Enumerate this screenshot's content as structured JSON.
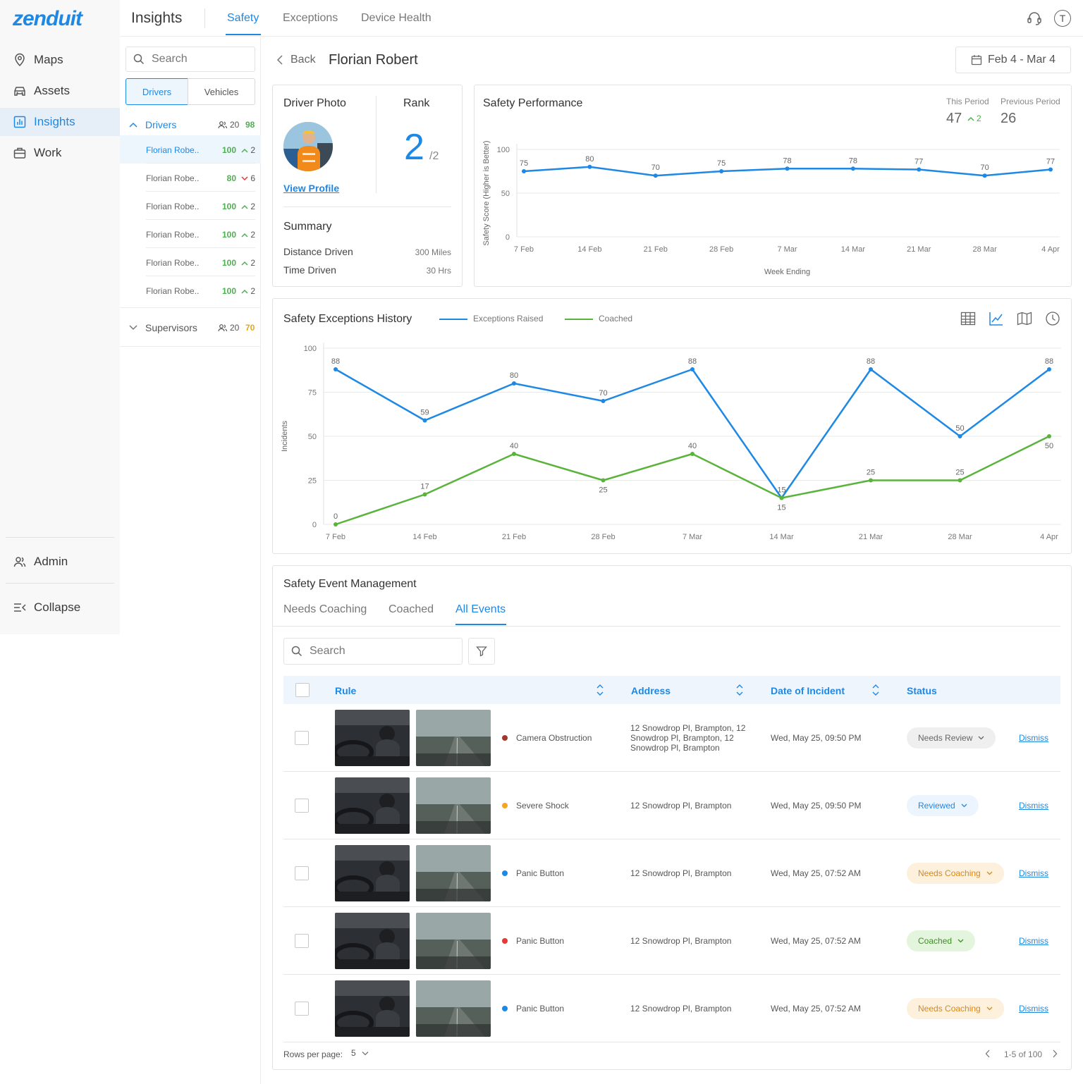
{
  "app": {
    "logo": "zenduit",
    "title": "Insights"
  },
  "nav": {
    "items": [
      {
        "label": "Maps",
        "icon": "map-pin-icon"
      },
      {
        "label": "Assets",
        "icon": "car-icon"
      },
      {
        "label": "Insights",
        "icon": "chart-icon",
        "active": true
      },
      {
        "label": "Work",
        "icon": "briefcase-icon"
      }
    ],
    "admin": "Admin",
    "collapse": "Collapse"
  },
  "tabs": [
    {
      "label": "Safety",
      "active": true
    },
    {
      "label": "Exceptions"
    },
    {
      "label": "Device Health"
    }
  ],
  "header_icons": {
    "support": "headset-icon",
    "user_initial": "T"
  },
  "list": {
    "search_placeholder": "Search",
    "segments": [
      "Drivers",
      "Vehicles"
    ],
    "drivers_group": {
      "label": "Drivers",
      "count": "20",
      "score": "98"
    },
    "drivers": [
      {
        "name": "Florian Robe..",
        "score": "100",
        "dir": "up",
        "change": "2",
        "selected": true
      },
      {
        "name": "Florian Robe..",
        "score": "80",
        "dir": "down",
        "change": "6"
      },
      {
        "name": "Florian Robe..",
        "score": "100",
        "dir": "up",
        "change": "2"
      },
      {
        "name": "Florian Robe..",
        "score": "100",
        "dir": "up",
        "change": "2"
      },
      {
        "name": "Florian Robe..",
        "score": "100",
        "dir": "up",
        "change": "2"
      },
      {
        "name": "Florian Robe..",
        "score": "100",
        "dir": "up",
        "change": "2"
      }
    ],
    "supervisors_group": {
      "label": "Supervisors",
      "count": "20",
      "score": "70"
    }
  },
  "page": {
    "back": "Back",
    "driver_name": "Florian Robert",
    "date_range": "Feb 4 - Mar 4"
  },
  "profile": {
    "photo_title": "Driver Photo",
    "view_profile": "View Profile",
    "rank_title": "Rank",
    "rank": "2",
    "rank_total": "/2",
    "summary_title": "Summary",
    "distance_label": "Distance Driven",
    "distance_value": "300 Miles",
    "time_label": "Time Driven",
    "time_value": "30 Hrs"
  },
  "performance": {
    "title": "Safety Performance",
    "this_period_label": "This Period",
    "this_period_value": "47",
    "this_period_change": "2",
    "previous_period_label": "Previous Period",
    "previous_period_value": "26"
  },
  "exceptions": {
    "title": "Safety Exceptions History",
    "view_icons": [
      "table-icon",
      "line-chart-icon",
      "map-icon",
      "clock-icon"
    ]
  },
  "chart_data": [
    {
      "type": "line",
      "ylabel": "Safety Score (Higher is Better)",
      "xlabel": "Week Ending",
      "ylim": [
        0,
        100
      ],
      "yticks": [
        "0",
        "50",
        "100"
      ],
      "categories": [
        "7 Feb",
        "14 Feb",
        "21 Feb",
        "28 Feb",
        "7 Mar",
        "14 Mar",
        "21 Mar",
        "28 Mar",
        "4 Apr"
      ],
      "series": [
        {
          "values": [
            75,
            80,
            70,
            75,
            78,
            78,
            77,
            70,
            77
          ],
          "color": "#1e88e5"
        }
      ],
      "grid": true
    },
    {
      "type": "line",
      "ylabel": "Incidents",
      "ylim": [
        0,
        100
      ],
      "yticks": [
        "0",
        "25",
        "50",
        "75",
        "100"
      ],
      "categories": [
        "7 Feb",
        "14 Feb",
        "21 Feb",
        "28 Feb",
        "7 Mar",
        "14 Mar",
        "21 Mar",
        "28 Mar",
        "4 Apr"
      ],
      "series": [
        {
          "name": "Exceptions Raised",
          "values": [
            88,
            59,
            80,
            70,
            88,
            15,
            88,
            50,
            88
          ],
          "color": "#1e88e5"
        },
        {
          "name": "Coached",
          "values": [
            0,
            17,
            40,
            25,
            40,
            15,
            25,
            25,
            50
          ],
          "color": "#5ab43c"
        }
      ],
      "legend": "top",
      "grid": true
    }
  ],
  "events": {
    "title": "Safety Event Management",
    "tabs": [
      {
        "label": "Needs Coaching"
      },
      {
        "label": "Coached"
      },
      {
        "label": "All Events",
        "active": true
      }
    ],
    "search_placeholder": "Search",
    "columns": {
      "rule": "Rule",
      "address": "Address",
      "date": "Date of Incident",
      "status": "Status"
    },
    "rows": [
      {
        "rule": "Camera Obstruction",
        "dot": "#a0392c",
        "address": "12 Snowdrop Pl, Brampton, 12 Snowdrop Pl, Brampton, 12 Snowdrop Pl, Brampton",
        "date": "Wed, May 25, 09:50 PM",
        "status": "Needs Review",
        "status_bg": "#efefef",
        "status_fg": "#666",
        "action": "Dismiss"
      },
      {
        "rule": "Severe Shock",
        "dot": "#f5a623",
        "address": "12 Snowdrop Pl, Brampton",
        "date": "Wed, May 25, 09:50 PM",
        "status": "Reviewed",
        "status_bg": "#ecf5fd",
        "status_fg": "#1e88e5",
        "action": "Dismiss"
      },
      {
        "rule": "Panic Button",
        "dot": "#1e88e5",
        "address": "12 Snowdrop Pl, Brampton",
        "date": "Wed, May 25, 07:52 AM",
        "status": "Needs Coaching",
        "status_bg": "#fdf0dc",
        "status_fg": "#d98a1a",
        "action": "Dismiss"
      },
      {
        "rule": "Panic Button",
        "dot": "#e53935",
        "address": "12 Snowdrop Pl, Brampton",
        "date": "Wed, May 25, 07:52 AM",
        "status": "Coached",
        "status_bg": "#e3f5dc",
        "status_fg": "#3d8f26",
        "action": "Dismiss"
      },
      {
        "rule": "Panic Button",
        "dot": "#1e88e5",
        "address": "12 Snowdrop Pl, Brampton",
        "date": "Wed, May 25, 07:52 AM",
        "status": "Needs Coaching",
        "status_bg": "#fdf0dc",
        "status_fg": "#d98a1a",
        "action": "Dismiss"
      }
    ],
    "pagination": {
      "rows_per_page_label": "Rows per page:",
      "rows_per_page": "5",
      "range": "1-5 of 100"
    }
  },
  "colors": {
    "accent": "#1e88e5",
    "green": "#5ab43c",
    "positive": "#4caf50",
    "warning": "#e6a817"
  }
}
